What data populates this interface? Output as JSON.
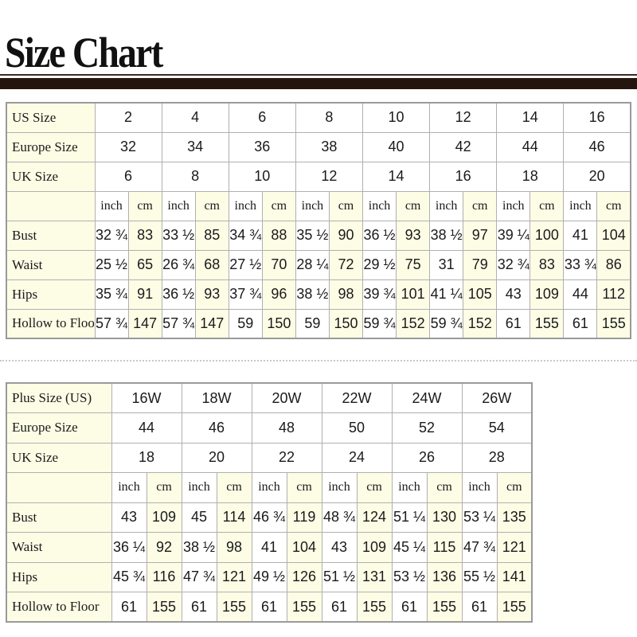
{
  "title": "Size Chart",
  "colors": {
    "rule": "#24160f",
    "label_bg": "#fdfde6",
    "cell_bg": "#ffffff",
    "border": "#b0b0b0"
  },
  "units": {
    "inch": "inch",
    "cm": "cm"
  },
  "standard": {
    "size_rows": [
      {
        "label": "US Size",
        "values": [
          "2",
          "4",
          "6",
          "8",
          "10",
          "12",
          "14",
          "16"
        ]
      },
      {
        "label": "Europe Size",
        "values": [
          "32",
          "34",
          "36",
          "38",
          "40",
          "42",
          "44",
          "46"
        ]
      },
      {
        "label": "UK Size",
        "values": [
          "6",
          "8",
          "10",
          "12",
          "14",
          "16",
          "18",
          "20"
        ]
      }
    ],
    "measure_rows": [
      {
        "label": "Bust",
        "values": [
          "32 ¾",
          "83",
          "33 ½",
          "85",
          "34 ¾",
          "88",
          "35 ½",
          "90",
          "36 ½",
          "93",
          "38 ½",
          "97",
          "39 ¼",
          "100",
          "41",
          "104"
        ]
      },
      {
        "label": "Waist",
        "values": [
          "25 ½",
          "65",
          "26 ¾",
          "68",
          "27 ½",
          "70",
          "28 ¼",
          "72",
          "29 ½",
          "75",
          "31",
          "79",
          "32 ¾",
          "83",
          "33 ¾",
          "86"
        ]
      },
      {
        "label": "Hips",
        "values": [
          "35 ¾",
          "91",
          "36 ½",
          "93",
          "37 ¾",
          "96",
          "38 ½",
          "98",
          "39 ¾",
          "101",
          "41 ¼",
          "105",
          "43",
          "109",
          "44",
          "112"
        ]
      },
      {
        "label": "Hollow to Floor",
        "values": [
          "57 ¾",
          "147",
          "57 ¾",
          "147",
          "59",
          "150",
          "59",
          "150",
          "59 ¾",
          "152",
          "59 ¾",
          "152",
          "61",
          "155",
          "61",
          "155"
        ]
      }
    ]
  },
  "plus": {
    "size_rows": [
      {
        "label": "Plus Size (US)",
        "values": [
          "16W",
          "18W",
          "20W",
          "22W",
          "24W",
          "26W"
        ]
      },
      {
        "label": "Europe Size",
        "values": [
          "44",
          "46",
          "48",
          "50",
          "52",
          "54"
        ]
      },
      {
        "label": "UK Size",
        "values": [
          "18",
          "20",
          "22",
          "24",
          "26",
          "28"
        ]
      }
    ],
    "measure_rows": [
      {
        "label": "Bust",
        "values": [
          "43",
          "109",
          "45",
          "114",
          "46 ¾",
          "119",
          "48 ¾",
          "124",
          "51 ¼",
          "130",
          "53 ¼",
          "135"
        ]
      },
      {
        "label": "Waist",
        "values": [
          "36 ¼",
          "92",
          "38 ½",
          "98",
          "41",
          "104",
          "43",
          "109",
          "45 ¼",
          "115",
          "47 ¾",
          "121"
        ]
      },
      {
        "label": "Hips",
        "values": [
          "45 ¾",
          "116",
          "47 ¾",
          "121",
          "49 ½",
          "126",
          "51 ½",
          "131",
          "53 ½",
          "136",
          "55 ½",
          "141"
        ]
      },
      {
        "label": "Hollow to Floor",
        "values": [
          "61",
          "155",
          "61",
          "155",
          "61",
          "155",
          "61",
          "155",
          "61",
          "155",
          "61",
          "155"
        ]
      }
    ]
  }
}
